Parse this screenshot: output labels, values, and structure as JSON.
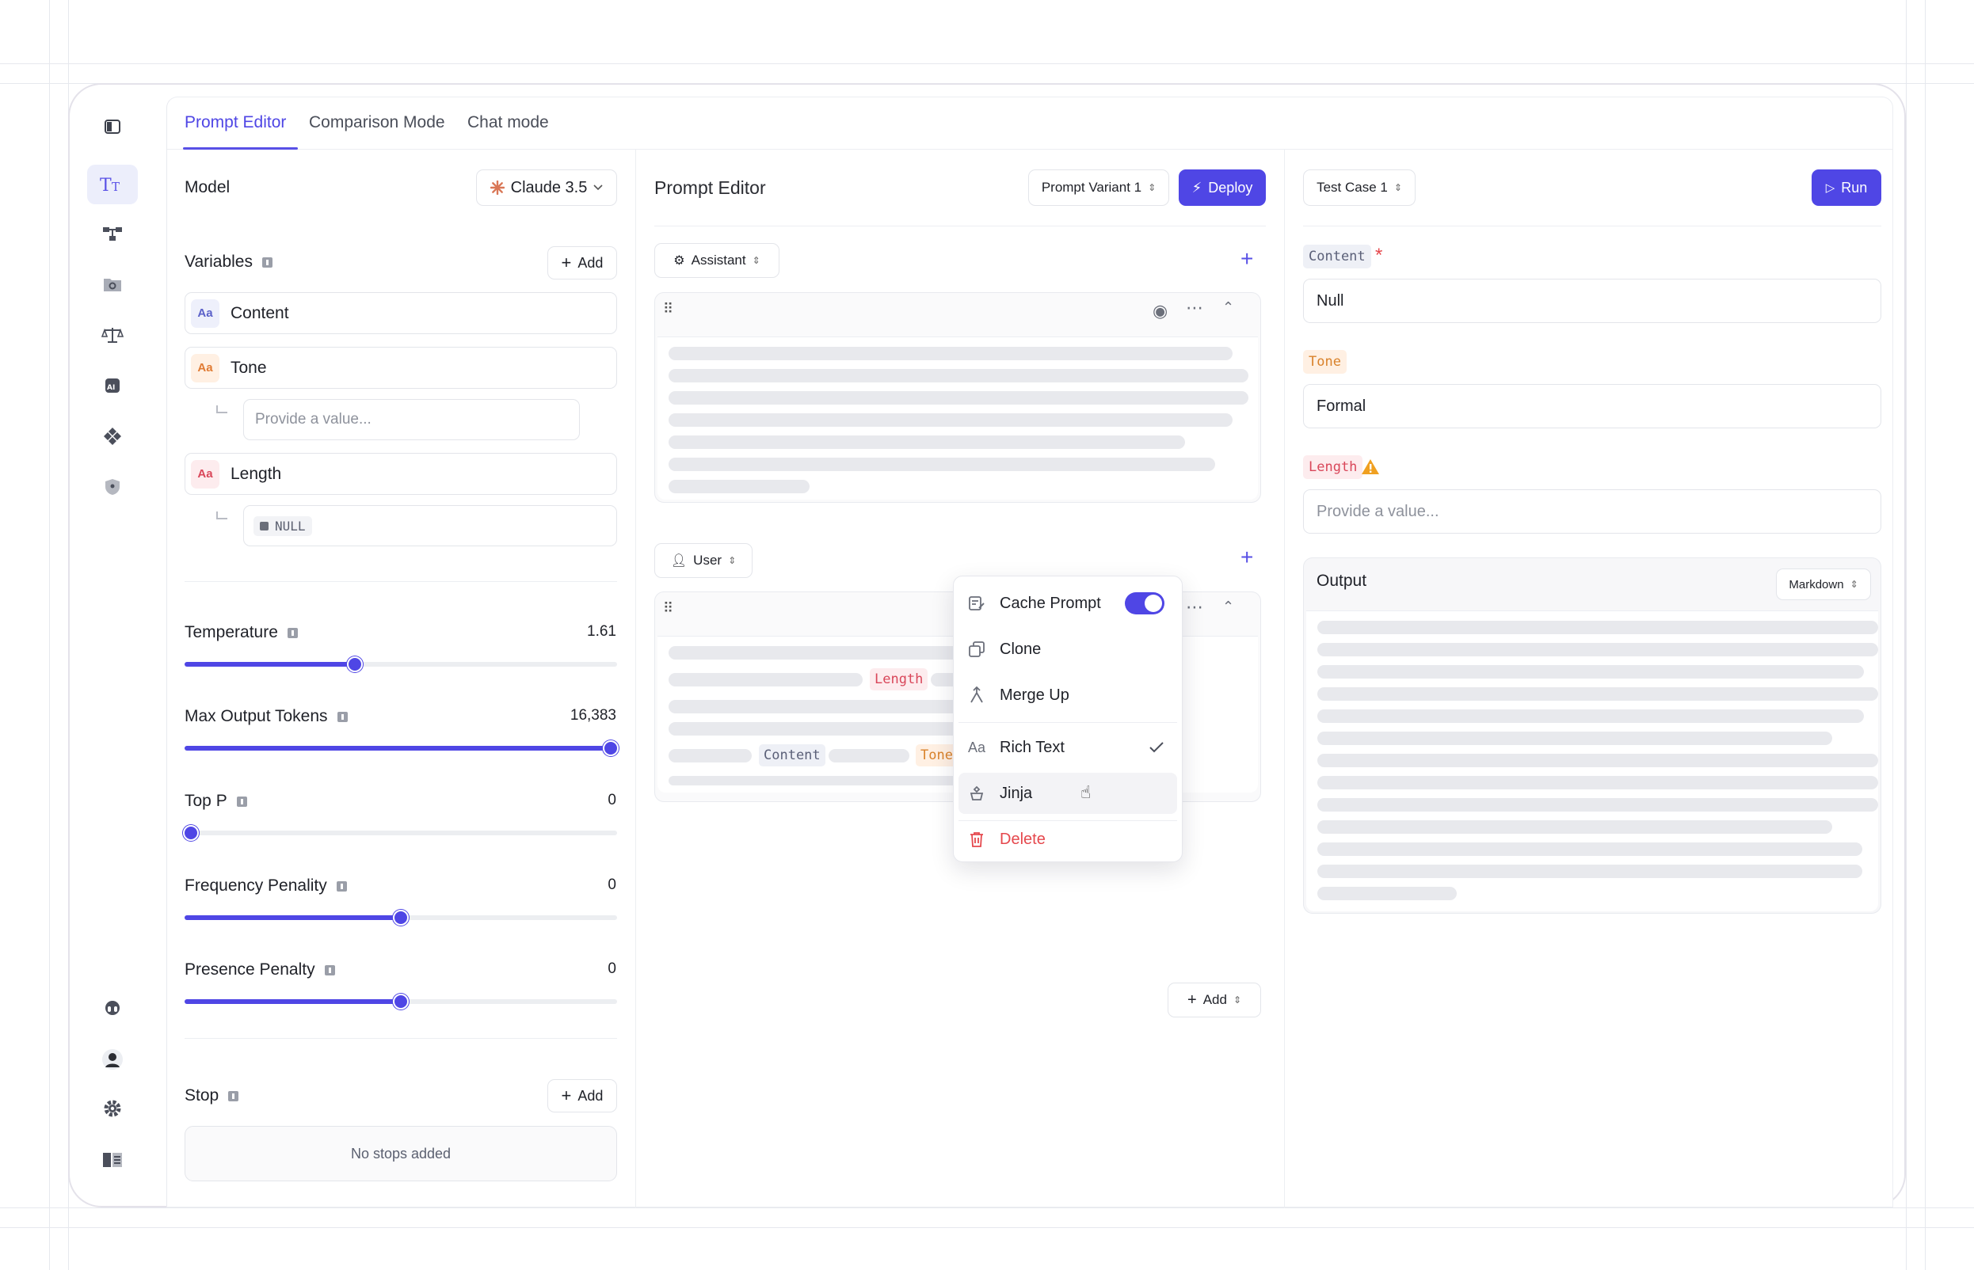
{
  "tabs": [
    "Prompt Editor",
    "Comparison Mode",
    "Chat mode"
  ],
  "settings": {
    "model_label": "Model",
    "model_value": "Claude 3.5",
    "variables_label": "Variables",
    "add_label": "Add",
    "variables": [
      {
        "badge": "Aa",
        "name": "Content",
        "color": "#eef0fb",
        "text_color": "#5b61c9"
      },
      {
        "badge": "Aa",
        "name": "Tone",
        "color": "#fff0e3",
        "text_color": "#e07b33"
      },
      {
        "badge": "Aa",
        "name": "Length",
        "color": "#fdecee",
        "text_color": "#d9475a"
      }
    ],
    "tone_placeholder": "Provide a value...",
    "length_value": "NULL",
    "sliders": [
      {
        "label": "Temperature",
        "value": "1.61",
        "fraction": 0.39
      },
      {
        "label": "Max Output Tokens",
        "value": "16,383",
        "fraction": 1.0
      },
      {
        "label": "Top P",
        "value": "0",
        "fraction": 0.0
      },
      {
        "label": "Frequency Penality",
        "value": "0",
        "fraction": 0.5
      },
      {
        "label": "Presence Penalty",
        "value": "0",
        "fraction": 0.5
      }
    ],
    "stop_label": "Stop",
    "stop_add_label": "Add",
    "no_stops": "No stops added"
  },
  "editor": {
    "title": "Prompt Editor",
    "variant": "Prompt Variant 1",
    "deploy_label": "Deploy",
    "assistant_role": "Assistant",
    "user_role": "User",
    "chip_length": "Length",
    "chip_content": "Content",
    "chip_tone": "Tone",
    "add_label": "Add"
  },
  "context_menu": {
    "items": [
      {
        "label": "Cache Prompt",
        "icon": "cache-icon"
      },
      {
        "label": "Clone",
        "icon": "clone-icon"
      },
      {
        "label": "Merge Up",
        "icon": "merge-up-icon"
      },
      {
        "label": "Rich Text",
        "icon": "rich-text-icon"
      },
      {
        "label": "Jinja",
        "icon": "jinja-icon"
      },
      {
        "label": "Delete",
        "icon": "trash-icon"
      }
    ],
    "cache_enabled": true,
    "checked_item": "Rich Text",
    "hovered_item": "Jinja"
  },
  "test": {
    "case": "Test Case 1",
    "run_label": "Run",
    "fields": [
      {
        "tag": "Content",
        "required": "*",
        "value": "Null",
        "tag_bg": "#eef0f6",
        "tag_color": "#5b6078"
      },
      {
        "tag": "Tone",
        "value": "Formal",
        "tag_bg": "#fff0e3",
        "tag_color": "#d9822b"
      },
      {
        "tag": "Length",
        "placeholder": "Provide a value...",
        "tag_bg": "#fdecee",
        "tag_color": "#d9475a"
      }
    ],
    "output_label": "Output",
    "output_format": "Markdown"
  },
  "colors": {
    "accent": "#4f46e5",
    "danger": "#e5484d",
    "warning": "#f0a020"
  }
}
